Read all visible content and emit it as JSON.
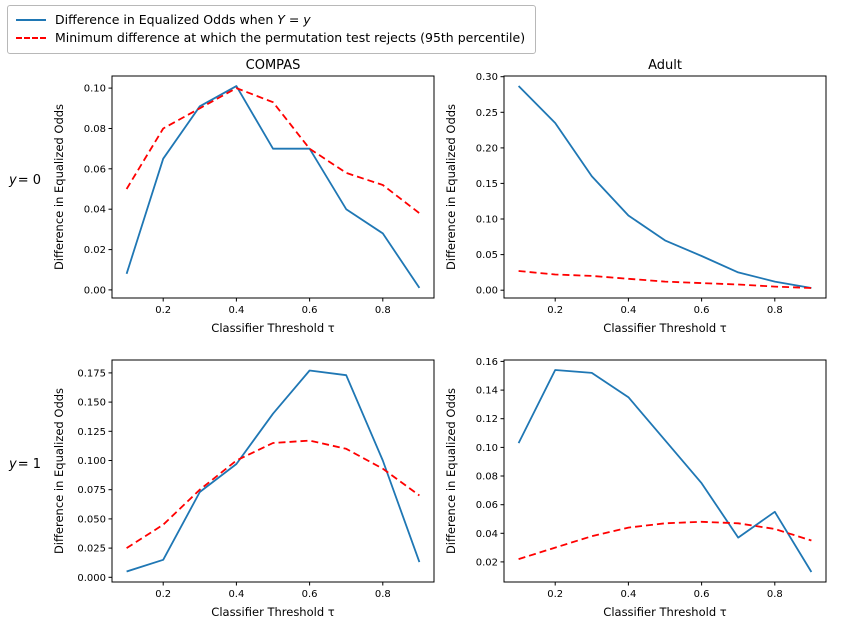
{
  "legend": {
    "items": [
      {
        "pre": "Difference in Equalized Odds when ",
        "math": "Y = y",
        "color": "#1f77b4",
        "style": "solid"
      },
      {
        "pre": "Minimum difference at which the permutation test rejects (95th percentile)",
        "math": "",
        "color": "#ff0000",
        "style": "dashed"
      }
    ]
  },
  "row_labels": [
    {
      "var": "y",
      "rest": " = 0"
    },
    {
      "var": "y",
      "rest": " = 1"
    }
  ],
  "chart_data": [
    {
      "type": "line",
      "title": "COMPAS",
      "xlabel": "Classifier Threshold τ",
      "ylabel": "Difference in Equalized Odds",
      "x": [
        0.1,
        0.2,
        0.3,
        0.4,
        0.5,
        0.6,
        0.7,
        0.8,
        0.9
      ],
      "xlim": [
        0.06,
        0.94
      ],
      "ylim": [
        -0.004,
        0.106
      ],
      "xticks": [
        0.2,
        0.4,
        0.6,
        0.8
      ],
      "xtick_labels": [
        "0.2",
        "0.4",
        "0.6",
        "0.8"
      ],
      "yticks": [
        0,
        0.02,
        0.04,
        0.06,
        0.08,
        0.1
      ],
      "ytick_labels": [
        "0.00",
        "0.02",
        "0.04",
        "0.06",
        "0.08",
        "0.10"
      ],
      "series": [
        {
          "name": "Difference in Equalized Odds when Y = y",
          "color": "#1f77b4",
          "dash": "solid",
          "values": [
            0.008,
            0.065,
            0.091,
            0.101,
            0.07,
            0.07,
            0.04,
            0.028,
            0.001
          ]
        },
        {
          "name": "Minimum difference at which the permutation test rejects (95th percentile)",
          "color": "#ff0000",
          "dash": "dashed",
          "values": [
            0.05,
            0.08,
            0.09,
            0.1,
            0.093,
            0.07,
            0.058,
            0.052,
            0.038
          ]
        }
      ]
    },
    {
      "type": "line",
      "title": "Adult",
      "xlabel": "Classifier Threshold τ",
      "ylabel": "Difference in Equalized Odds",
      "x": [
        0.1,
        0.2,
        0.3,
        0.4,
        0.5,
        0.6,
        0.7,
        0.8,
        0.9
      ],
      "xlim": [
        0.06,
        0.94
      ],
      "ylim": [
        -0.011,
        0.301
      ],
      "xticks": [
        0.2,
        0.4,
        0.6,
        0.8
      ],
      "xtick_labels": [
        "0.2",
        "0.4",
        "0.6",
        "0.8"
      ],
      "yticks": [
        0,
        0.05,
        0.1,
        0.15,
        0.2,
        0.25,
        0.3
      ],
      "ytick_labels": [
        "0.00",
        "0.05",
        "0.10",
        "0.15",
        "0.20",
        "0.25",
        "0.30"
      ],
      "series": [
        {
          "name": "Difference in Equalized Odds when Y = y",
          "color": "#1f77b4",
          "dash": "solid",
          "values": [
            0.287,
            0.235,
            0.16,
            0.105,
            0.07,
            0.048,
            0.025,
            0.012,
            0.003
          ]
        },
        {
          "name": "Minimum difference at which the permutation test rejects (95th percentile)",
          "color": "#ff0000",
          "dash": "dashed",
          "values": [
            0.027,
            0.022,
            0.02,
            0.016,
            0.012,
            0.01,
            0.008,
            0.005,
            0.003
          ]
        }
      ]
    },
    {
      "type": "line",
      "title": "",
      "xlabel": "Classifier Threshold τ",
      "ylabel": "Difference in Equalized Odds",
      "x": [
        0.1,
        0.2,
        0.3,
        0.4,
        0.5,
        0.6,
        0.7,
        0.8,
        0.9
      ],
      "xlim": [
        0.06,
        0.94
      ],
      "ylim": [
        -0.004,
        0.186
      ],
      "xticks": [
        0.2,
        0.4,
        0.6,
        0.8
      ],
      "xtick_labels": [
        "0.2",
        "0.4",
        "0.6",
        "0.8"
      ],
      "yticks": [
        0,
        0.025,
        0.05,
        0.075,
        0.1,
        0.125,
        0.15,
        0.175
      ],
      "ytick_labels": [
        "0.000",
        "0.025",
        "0.050",
        "0.075",
        "0.100",
        "0.125",
        "0.150",
        "0.175"
      ],
      "series": [
        {
          "name": "Difference in Equalized Odds when Y = y",
          "color": "#1f77b4",
          "dash": "solid",
          "values": [
            0.005,
            0.015,
            0.073,
            0.097,
            0.14,
            0.177,
            0.173,
            0.1,
            0.013
          ]
        },
        {
          "name": "Minimum difference at which the permutation test rejects (95th percentile)",
          "color": "#ff0000",
          "dash": "dashed",
          "values": [
            0.025,
            0.045,
            0.075,
            0.1,
            0.115,
            0.117,
            0.11,
            0.093,
            0.07
          ]
        }
      ]
    },
    {
      "type": "line",
      "title": "",
      "xlabel": "Classifier Threshold τ",
      "ylabel": "Difference in Equalized Odds",
      "x": [
        0.1,
        0.2,
        0.3,
        0.4,
        0.5,
        0.6,
        0.7,
        0.8,
        0.9
      ],
      "xlim": [
        0.06,
        0.94
      ],
      "ylim": [
        0.006,
        0.161
      ],
      "xticks": [
        0.2,
        0.4,
        0.6,
        0.8
      ],
      "xtick_labels": [
        "0.2",
        "0.4",
        "0.6",
        "0.8"
      ],
      "yticks": [
        0.02,
        0.04,
        0.06,
        0.08,
        0.1,
        0.12,
        0.14,
        0.16
      ],
      "ytick_labels": [
        "0.02",
        "0.04",
        "0.06",
        "0.08",
        "0.10",
        "0.12",
        "0.14",
        "0.16"
      ],
      "series": [
        {
          "name": "Difference in Equalized Odds when Y = y",
          "color": "#1f77b4",
          "dash": "solid",
          "values": [
            0.103,
            0.154,
            0.152,
            0.135,
            0.105,
            0.075,
            0.037,
            0.055,
            0.013
          ]
        },
        {
          "name": "Minimum difference at which the permutation test rejects (95th percentile)",
          "color": "#ff0000",
          "dash": "dashed",
          "values": [
            0.022,
            0.03,
            0.038,
            0.044,
            0.047,
            0.048,
            0.047,
            0.043,
            0.035
          ]
        }
      ]
    }
  ]
}
